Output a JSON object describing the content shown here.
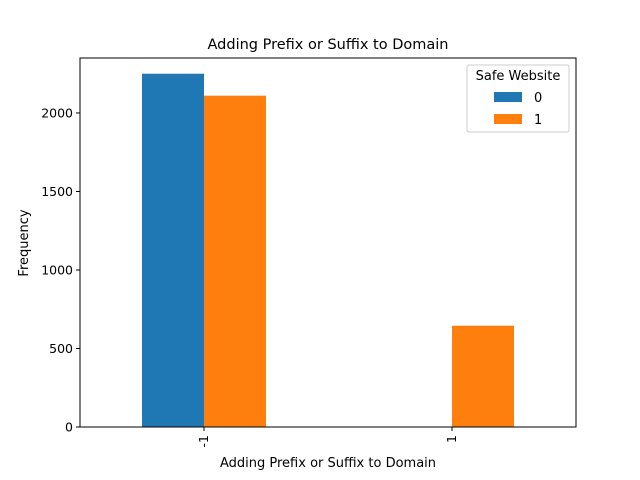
{
  "chart_data": {
    "type": "bar",
    "title": "Adding Prefix or Suffix to Domain",
    "xlabel": "Adding Prefix or Suffix to Domain",
    "ylabel": "Frequency",
    "categories": [
      "-1",
      "1"
    ],
    "series": [
      {
        "name": "0",
        "color": "#1f77b4",
        "values": [
          2250,
          0
        ]
      },
      {
        "name": "1",
        "color": "#ff7f0e",
        "values": [
          2110,
          645
        ]
      }
    ],
    "ylim": [
      0,
      2350
    ],
    "yticks": [
      0,
      500,
      1000,
      1500,
      2000
    ],
    "legend": {
      "title": "Safe Website",
      "position": "top-right"
    },
    "grid": false
  }
}
